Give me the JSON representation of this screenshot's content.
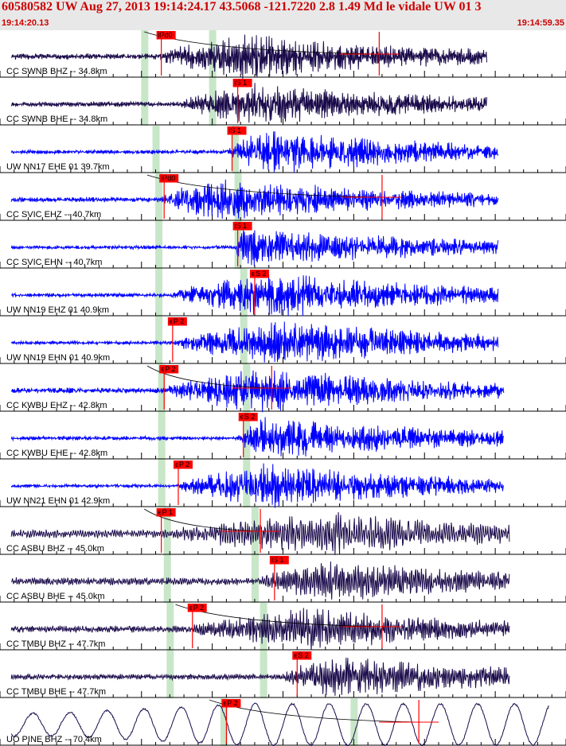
{
  "header": {
    "title": "60580582 UW Aug 27, 2013 19:14:24.17   43.5068 -121.7220  2.8 1.49 Md le vidale UW 01   3",
    "start_time": "19:14:20.13",
    "end_time": "19:14:59.35"
  },
  "colors": {
    "title": "#cc0000",
    "header_bg": "#e8e8e8",
    "pick": "#ff0000",
    "window": "#c8e6c8",
    "bhz_trace": "#1a0a4a",
    "eh_trace": "#0000ff"
  },
  "chart_data": {
    "type": "seismogram",
    "time_range": [
      "19:14:20.13",
      "19:14:59.35"
    ],
    "traces": [
      {
        "label": "CC SWNB BHZ -- 34.8km",
        "color": "#1a0a4a",
        "picks": [
          {
            "label": "iPd0",
            "t": 0.285
          },
          {
            "label": "",
            "t": 0.67
          }
        ],
        "windows": [
          0.255,
          0.375
        ],
        "noise": 0.35,
        "onset": 0.28,
        "peak": 0.45,
        "end": 0.86,
        "amp": 28,
        "freq": 2.2,
        "curve": true
      },
      {
        "label": "CC SWNB BHE -- 34.8km",
        "color": "#1a0a4a",
        "picks": [
          {
            "label": "iS 1",
            "t": 0.42
          }
        ],
        "windows": [
          0.255,
          0.375
        ],
        "noise": 0.3,
        "onset": 0.32,
        "peak": 0.46,
        "end": 0.86,
        "amp": 26,
        "freq": 2.2,
        "curve": false
      },
      {
        "label": "UW NN17 EHE 01 39.7km",
        "color": "#0000ff",
        "picks": [
          {
            "label": "iS 1",
            "t": 0.41
          }
        ],
        "windows": [
          0.275,
          0.415
        ],
        "noise": 0.15,
        "onset": 0.4,
        "peak": 0.48,
        "end": 0.88,
        "amp": 28,
        "freq": 3.2,
        "curve": false
      },
      {
        "label": "CC SVIC EHZ -- 40.7km",
        "color": "#0000ff",
        "picks": [
          {
            "label": "iPd0",
            "t": 0.29
          },
          {
            "label": "",
            "t": 0.675
          }
        ],
        "windows": [
          0.28,
          0.42
        ],
        "noise": 0.25,
        "onset": 0.285,
        "peak": 0.4,
        "end": 0.88,
        "amp": 28,
        "freq": 3.4,
        "curve": true
      },
      {
        "label": "CC SVIC EHN -- 40.7km",
        "color": "#0000ff",
        "picks": [
          {
            "label": "iS 1",
            "t": 0.42
          }
        ],
        "windows": [
          0.28,
          0.42
        ],
        "noise": 0.12,
        "onset": 0.415,
        "peak": 0.43,
        "end": 0.88,
        "amp": 28,
        "freq": 3.4,
        "curve": false
      },
      {
        "label": "UW NN19 EHZ 01 40.9km",
        "color": "#0000ff",
        "picks": [
          {
            "label": "eS 2",
            "t": 0.45
          }
        ],
        "windows": [
          0.28,
          0.43
        ],
        "noise": 0.15,
        "onset": 0.3,
        "peak": 0.5,
        "end": 0.88,
        "amp": 28,
        "freq": 3.2,
        "curve": false
      },
      {
        "label": "UW NN19 EHN 01 40.9km",
        "color": "#0000ff",
        "picks": [
          {
            "label": "eP 2",
            "t": 0.305
          }
        ],
        "windows": [
          0.28,
          0.43
        ],
        "noise": 0.12,
        "onset": 0.305,
        "peak": 0.5,
        "end": 0.88,
        "amp": 28,
        "freq": 3.2,
        "curve": false
      },
      {
        "label": "CC KWBU EHZ -- 42.8km",
        "color": "#0000ff",
        "picks": [
          {
            "label": "eP 2",
            "t": 0.29
          },
          {
            "label": "",
            "t": 0.48
          }
        ],
        "windows": [
          0.285,
          0.435
        ],
        "noise": 0.3,
        "onset": 0.29,
        "peak": 0.48,
        "end": 0.89,
        "amp": 28,
        "freq": 3.2,
        "curve": true
      },
      {
        "label": "CC KWBU EHE -- 42.8km",
        "color": "#0000ff",
        "picks": [
          {
            "label": "eS 2",
            "t": 0.43
          }
        ],
        "windows": [
          0.285,
          0.435
        ],
        "noise": 0.15,
        "onset": 0.42,
        "peak": 0.47,
        "end": 0.89,
        "amp": 28,
        "freq": 3.2,
        "curve": false
      },
      {
        "label": "UW NN21 EHN 01 42.9km",
        "color": "#0000ff",
        "picks": [
          {
            "label": "eP 2",
            "t": 0.315
          }
        ],
        "windows": [
          0.285,
          0.435
        ],
        "noise": 0.12,
        "onset": 0.315,
        "peak": 0.47,
        "end": 0.89,
        "amp": 28,
        "freq": 3.2,
        "curve": false
      },
      {
        "label": "CC ASBU BHZ -- 45.0km",
        "color": "#1a0a4a",
        "picks": [
          {
            "label": "eP 1",
            "t": 0.285
          },
          {
            "label": "",
            "t": 0.46
          }
        ],
        "windows": [
          0.295,
          0.45
        ],
        "noise": 0.6,
        "onset": 0.3,
        "peak": 0.6,
        "end": 0.9,
        "amp": 26,
        "freq": 1.4,
        "curve": true
      },
      {
        "label": "CC ASBU BHE -- 45.0km",
        "color": "#1a0a4a",
        "picks": [
          {
            "label": "iS 1",
            "t": 0.485
          }
        ],
        "windows": [
          0.295,
          0.45
        ],
        "noise": 0.55,
        "onset": 0.46,
        "peak": 0.6,
        "end": 0.9,
        "amp": 26,
        "freq": 1.6,
        "curve": false
      },
      {
        "label": "CC TMBU BHZ -- 47.7km",
        "color": "#1a0a4a",
        "picks": [
          {
            "label": "eP 2",
            "t": 0.34
          },
          {
            "label": "",
            "t": 0.675
          }
        ],
        "windows": [
          0.3,
          0.465
        ],
        "noise": 0.45,
        "onset": 0.34,
        "peak": 0.55,
        "end": 0.9,
        "amp": 26,
        "freq": 1.8,
        "curve": true
      },
      {
        "label": "CC TMBU BHE -- 47.7km",
        "color": "#1a0a4a",
        "picks": [
          {
            "label": "eS 2",
            "t": 0.525
          }
        ],
        "windows": [
          0.3,
          0.465
        ],
        "noise": 0.35,
        "onset": 0.5,
        "peak": 0.6,
        "end": 0.9,
        "amp": 26,
        "freq": 1.8,
        "curve": false
      },
      {
        "label": "UO PINE BHZ -- 70.4km",
        "color": "#1a0a4a",
        "picks": [
          {
            "label": "eP 2",
            "t": 0.4
          },
          {
            "label": "",
            "t": 0.74
          }
        ],
        "windows": [
          0.395,
          0.625
        ],
        "noise": 1.0,
        "onset": 0.38,
        "peak": 0.7,
        "end": 0.97,
        "amp": 26,
        "freq": 0.28,
        "curve": true
      }
    ]
  }
}
